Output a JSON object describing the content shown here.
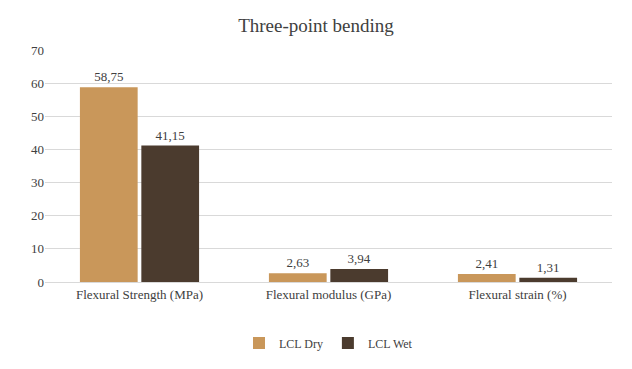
{
  "chart_data": {
    "type": "bar",
    "title": "Three-point bending",
    "categories": [
      "Flexural Strength (MPa)",
      "Flexural modulus (GPa)",
      "Flexural strain (%)"
    ],
    "series": [
      {
        "name": "LCL Dry",
        "color": "#c9975a",
        "values": [
          58.75,
          2.63,
          2.41
        ],
        "value_labels": [
          "58,75",
          "2,63",
          "2,41"
        ]
      },
      {
        "name": "LCL Wet",
        "color": "#4b3b2e",
        "values": [
          41.15,
          3.94,
          1.31
        ],
        "value_labels": [
          "41,15",
          "3,94",
          "1,31"
        ]
      }
    ],
    "ylim": [
      0,
      70
    ],
    "yticks": [
      0,
      10,
      20,
      30,
      40,
      50,
      60,
      70
    ],
    "grid": true,
    "legend": "bottom",
    "data_labels": true
  }
}
